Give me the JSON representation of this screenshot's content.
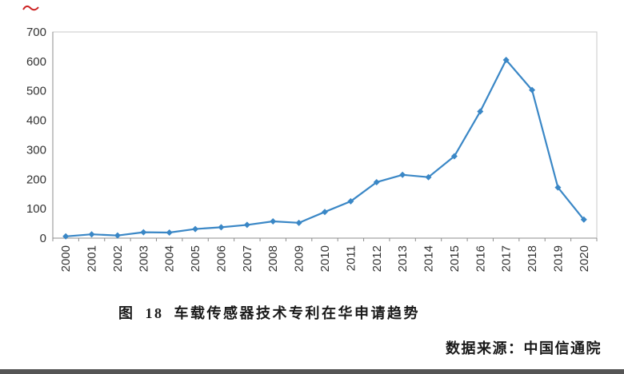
{
  "chart_data": {
    "type": "line",
    "x": [
      "2000",
      "2001",
      "2002",
      "2003",
      "2004",
      "2005",
      "2006",
      "2007",
      "2008",
      "2009",
      "2010",
      "2011",
      "2012",
      "2013",
      "2014",
      "2015",
      "2016",
      "2017",
      "2018",
      "2019",
      "2020"
    ],
    "values": [
      6,
      13,
      9,
      20,
      19,
      31,
      37,
      45,
      57,
      52,
      89,
      125,
      190,
      215,
      207,
      278,
      430,
      605,
      503,
      172,
      63
    ],
    "title": "图 18 车载传感器技术专利在华申请趋势",
    "source": "数据来源：中国信通院",
    "xlabel": "",
    "ylabel": "",
    "ylim": [
      0,
      700
    ],
    "yticks": [
      0,
      100,
      200,
      300,
      400,
      500,
      600,
      700
    ],
    "grid": false,
    "legend": "none",
    "marker": "diamond",
    "line_color": "#3A87C6",
    "axis_color": "#8C8C8C",
    "border_color": "#C8C8C8",
    "tick_text_color": "#333333"
  }
}
